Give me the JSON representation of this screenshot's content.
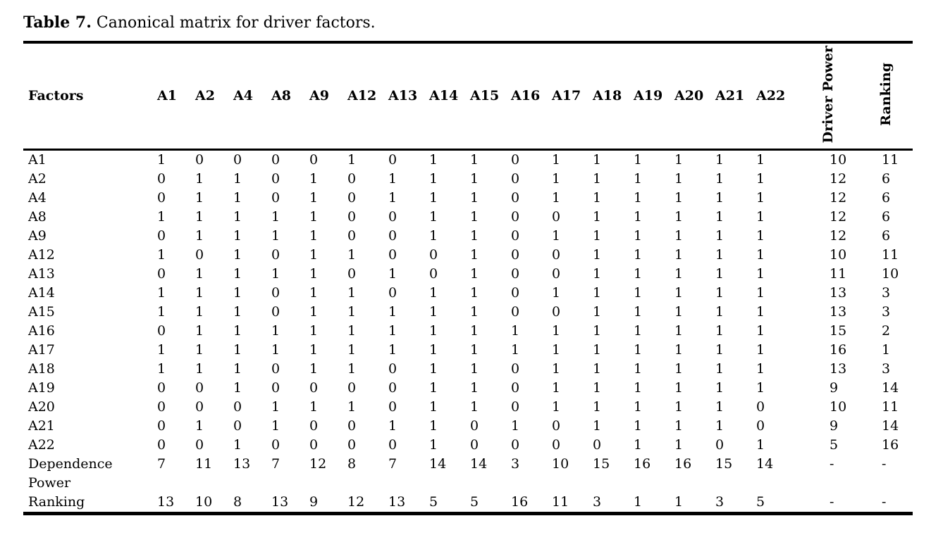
{
  "title": {
    "bold": "Table 7.",
    "rest": " Canonical matrix for driver factors."
  },
  "table": {
    "corner_header": "Factors",
    "column_headers": [
      "A1",
      "A2",
      "A4",
      "A8",
      "A9",
      "A12",
      "A13",
      "A14",
      "A15",
      "A16",
      "A17",
      "A18",
      "A19",
      "A20",
      "A21",
      "A22"
    ],
    "rotated_headers": [
      "Driver Power",
      "Ranking"
    ],
    "rows": [
      {
        "label": "A1",
        "values": [
          "1",
          "0",
          "0",
          "0",
          "0",
          "1",
          "0",
          "1",
          "1",
          "0",
          "1",
          "1",
          "1",
          "1",
          "1",
          "1",
          "10",
          "11"
        ]
      },
      {
        "label": "A2",
        "values": [
          "0",
          "1",
          "1",
          "0",
          "1",
          "0",
          "1",
          "1",
          "1",
          "0",
          "1",
          "1",
          "1",
          "1",
          "1",
          "1",
          "12",
          "6"
        ]
      },
      {
        "label": "A4",
        "values": [
          "0",
          "1",
          "1",
          "0",
          "1",
          "0",
          "1",
          "1",
          "1",
          "0",
          "1",
          "1",
          "1",
          "1",
          "1",
          "1",
          "12",
          "6"
        ]
      },
      {
        "label": "A8",
        "values": [
          "1",
          "1",
          "1",
          "1",
          "1",
          "0",
          "0",
          "1",
          "1",
          "0",
          "0",
          "1",
          "1",
          "1",
          "1",
          "1",
          "12",
          "6"
        ]
      },
      {
        "label": "A9",
        "values": [
          "0",
          "1",
          "1",
          "1",
          "1",
          "0",
          "0",
          "1",
          "1",
          "0",
          "1",
          "1",
          "1",
          "1",
          "1",
          "1",
          "12",
          "6"
        ]
      },
      {
        "label": "A12",
        "values": [
          "1",
          "0",
          "1",
          "0",
          "1",
          "1",
          "0",
          "0",
          "1",
          "0",
          "0",
          "1",
          "1",
          "1",
          "1",
          "1",
          "10",
          "11"
        ]
      },
      {
        "label": "A13",
        "values": [
          "0",
          "1",
          "1",
          "1",
          "1",
          "0",
          "1",
          "0",
          "1",
          "0",
          "0",
          "1",
          "1",
          "1",
          "1",
          "1",
          "11",
          "10"
        ]
      },
      {
        "label": "A14",
        "values": [
          "1",
          "1",
          "1",
          "0",
          "1",
          "1",
          "0",
          "1",
          "1",
          "0",
          "1",
          "1",
          "1",
          "1",
          "1",
          "1",
          "13",
          "3"
        ]
      },
      {
        "label": "A15",
        "values": [
          "1",
          "1",
          "1",
          "0",
          "1",
          "1",
          "1",
          "1",
          "1",
          "0",
          "0",
          "1",
          "1",
          "1",
          "1",
          "1",
          "13",
          "3"
        ]
      },
      {
        "label": "A16",
        "values": [
          "0",
          "1",
          "1",
          "1",
          "1",
          "1",
          "1",
          "1",
          "1",
          "1",
          "1",
          "1",
          "1",
          "1",
          "1",
          "1",
          "15",
          "2"
        ]
      },
      {
        "label": "A17",
        "values": [
          "1",
          "1",
          "1",
          "1",
          "1",
          "1",
          "1",
          "1",
          "1",
          "1",
          "1",
          "1",
          "1",
          "1",
          "1",
          "1",
          "16",
          "1"
        ]
      },
      {
        "label": "A18",
        "values": [
          "1",
          "1",
          "1",
          "0",
          "1",
          "1",
          "0",
          "1",
          "1",
          "0",
          "1",
          "1",
          "1",
          "1",
          "1",
          "1",
          "13",
          "3"
        ]
      },
      {
        "label": "A19",
        "values": [
          "0",
          "0",
          "1",
          "0",
          "0",
          "0",
          "0",
          "1",
          "1",
          "0",
          "1",
          "1",
          "1",
          "1",
          "1",
          "1",
          "9",
          "14"
        ]
      },
      {
        "label": "A20",
        "values": [
          "0",
          "0",
          "0",
          "1",
          "1",
          "1",
          "0",
          "1",
          "1",
          "0",
          "1",
          "1",
          "1",
          "1",
          "1",
          "0",
          "10",
          "11"
        ]
      },
      {
        "label": "A21",
        "values": [
          "0",
          "1",
          "0",
          "1",
          "0",
          "0",
          "1",
          "1",
          "0",
          "1",
          "0",
          "1",
          "1",
          "1",
          "1",
          "0",
          "9",
          "14"
        ]
      },
      {
        "label": "A22",
        "values": [
          "0",
          "0",
          "1",
          "0",
          "0",
          "0",
          "0",
          "1",
          "0",
          "0",
          "0",
          "0",
          "1",
          "1",
          "0",
          "1",
          "5",
          "16"
        ]
      },
      {
        "label": "Dependence Power",
        "values": [
          "7",
          "11",
          "13",
          "7",
          "12",
          "8",
          "7",
          "14",
          "14",
          "3",
          "10",
          "15",
          "16",
          "16",
          "15",
          "14",
          "-",
          "-"
        ]
      },
      {
        "label": "Ranking",
        "values": [
          "13",
          "10",
          "8",
          "13",
          "9",
          "12",
          "13",
          "5",
          "5",
          "16",
          "11",
          "3",
          "1",
          "1",
          "3",
          "5",
          "-",
          "-"
        ]
      }
    ]
  }
}
